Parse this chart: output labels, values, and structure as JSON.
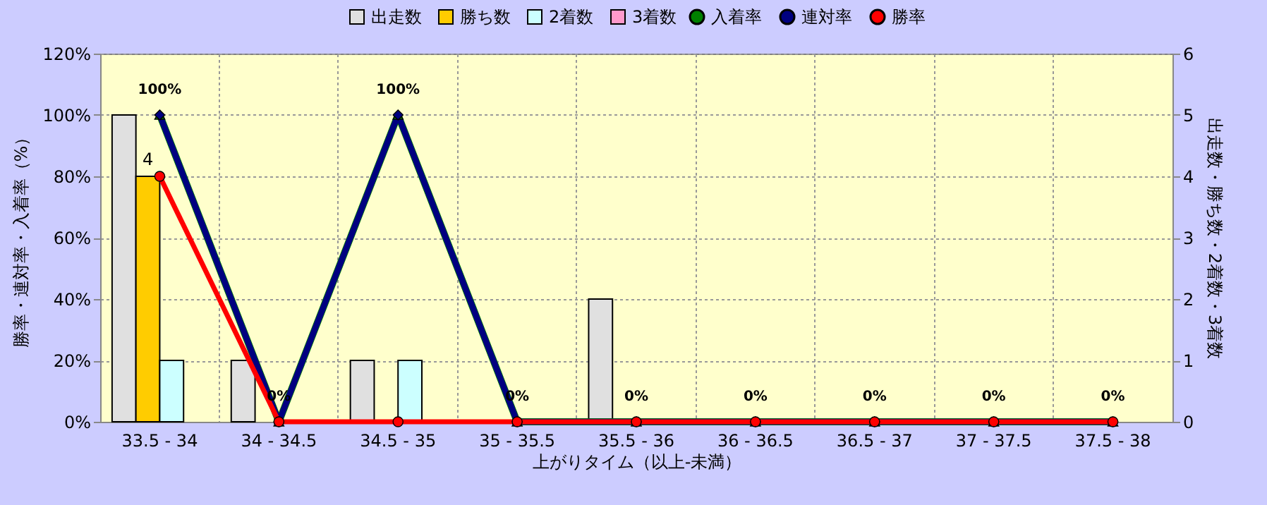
{
  "chart_data": {
    "type": "bar",
    "xlabel": "上がりタイム（以上-未満）",
    "ylabel": "勝率・連対率・入着率（%）",
    "y2label": "出走数・勝ち数・2着数・3着数",
    "categories": [
      "33.5 - 34",
      "34 - 34.5",
      "34.5 - 35",
      "35 - 35.5",
      "35.5 - 36",
      "36 - 36.5",
      "36.5 - 37",
      "37 - 37.5",
      "37.5 - 38"
    ],
    "series": [
      {
        "name": "出走数",
        "type": "bar",
        "axis": "y2",
        "color": "#e0e0e0",
        "values": [
          5,
          1,
          1,
          0,
          2,
          0,
          0,
          0,
          0
        ]
      },
      {
        "name": "勝ち数",
        "type": "bar",
        "axis": "y2",
        "color": "#ffcc00",
        "values": [
          4,
          0,
          0,
          0,
          0,
          0,
          0,
          0,
          0
        ],
        "value_labels": [
          "4",
          null,
          null,
          null,
          null,
          null,
          null,
          null,
          null
        ]
      },
      {
        "name": "2着数",
        "type": "bar",
        "axis": "y2",
        "color": "#ccffff",
        "values": [
          1,
          0,
          1,
          0,
          0,
          0,
          0,
          0,
          0
        ]
      },
      {
        "name": "3着数",
        "type": "bar",
        "axis": "y2",
        "color": "#ff99cc",
        "values": [
          0,
          0,
          0,
          0,
          0,
          0,
          0,
          0,
          0
        ]
      },
      {
        "name": "入着率",
        "type": "line",
        "axis": "y",
        "color": "#008000",
        "marker": "triangle",
        "values": [
          100,
          0,
          100,
          0,
          0,
          0,
          0,
          0,
          0
        ],
        "value_labels": [
          "100%",
          "0%",
          "100%",
          "0%",
          "0%",
          "0%",
          "0%",
          "0%",
          "0%"
        ]
      },
      {
        "name": "連対率",
        "type": "line",
        "axis": "y",
        "color": "#000080",
        "marker": "diamond",
        "values": [
          100,
          0,
          100,
          0,
          0,
          0,
          0,
          0,
          0
        ]
      },
      {
        "name": "勝率",
        "type": "line",
        "axis": "y",
        "color": "#ff0000",
        "marker": "circle",
        "values": [
          80,
          0,
          0,
          0,
          0,
          0,
          0,
          0,
          0
        ]
      }
    ],
    "ylim": [
      0,
      120
    ],
    "yticks": [
      {
        "value": 0,
        "label": "0%"
      },
      {
        "value": 20,
        "label": "20%"
      },
      {
        "value": 40,
        "label": "40%"
      },
      {
        "value": 60,
        "label": "60%"
      },
      {
        "value": 80,
        "label": "80%"
      },
      {
        "value": 100,
        "label": "100%"
      },
      {
        "value": 120,
        "label": "120%"
      }
    ],
    "y2lim": [
      0,
      6
    ],
    "y2ticks": [
      0,
      1,
      2,
      3,
      4,
      5,
      6
    ],
    "grid": true,
    "legend": "top"
  }
}
